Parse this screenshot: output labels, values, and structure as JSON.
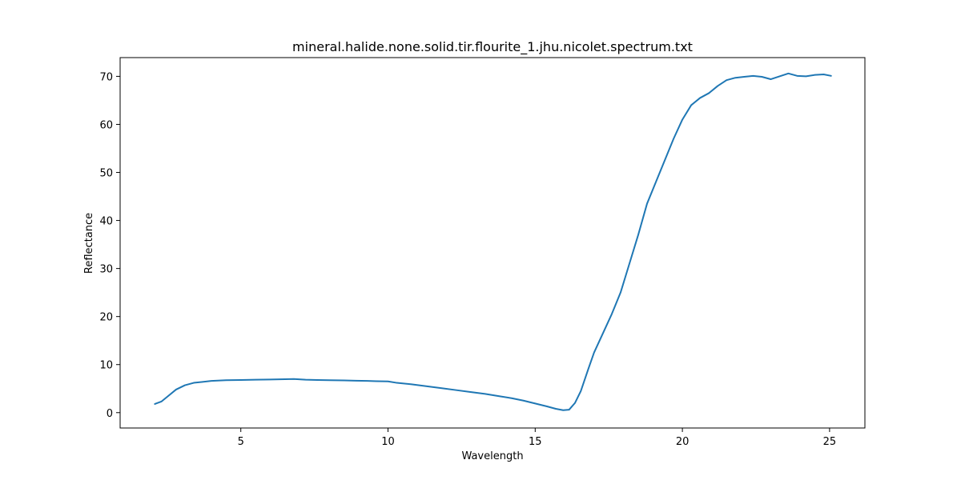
{
  "chart_data": {
    "type": "line",
    "title": "mineral.halide.none.solid.tir.flourite_1.jhu.nicolet.spectrum.txt",
    "xlabel": "Wavelength",
    "ylabel": "Reflectance",
    "xlim": [
      0.9,
      26.2
    ],
    "ylim": [
      -3.2,
      73.9
    ],
    "xticks": [
      5,
      10,
      15,
      20,
      25
    ],
    "yticks": [
      0,
      10,
      20,
      30,
      40,
      50,
      60,
      70
    ],
    "xtick_labels": [
      "5",
      "10",
      "15",
      "20",
      "25"
    ],
    "ytick_labels": [
      "0",
      "10",
      "20",
      "30",
      "40",
      "50",
      "60",
      "70"
    ],
    "grid": false,
    "series": [
      {
        "color": "#1f77b4",
        "x": [
          2.08,
          2.3,
          2.5,
          2.8,
          3.1,
          3.4,
          3.7,
          4.0,
          4.5,
          5.0,
          5.5,
          6.0,
          6.5,
          6.8,
          7.2,
          7.6,
          8.0,
          8.5,
          8.9,
          9.3,
          9.6,
          10.0,
          10.3,
          10.8,
          11.3,
          11.8,
          12.3,
          12.8,
          13.3,
          13.8,
          14.2,
          14.6,
          15.0,
          15.4,
          15.7,
          15.95,
          16.15,
          16.35,
          16.55,
          16.8,
          17.0,
          17.3,
          17.6,
          17.9,
          18.2,
          18.5,
          18.8,
          19.1,
          19.4,
          19.7,
          20.0,
          20.3,
          20.6,
          20.9,
          21.2,
          21.5,
          21.8,
          22.1,
          22.4,
          22.7,
          23.0,
          23.3,
          23.6,
          23.9,
          24.2,
          24.5,
          24.8,
          25.05
        ],
        "y": [
          1.8,
          2.3,
          3.3,
          4.8,
          5.7,
          6.2,
          6.4,
          6.6,
          6.75,
          6.8,
          6.85,
          6.9,
          6.95,
          7.0,
          6.85,
          6.8,
          6.75,
          6.7,
          6.65,
          6.6,
          6.55,
          6.5,
          6.2,
          5.9,
          5.5,
          5.1,
          4.7,
          4.3,
          3.9,
          3.4,
          3.0,
          2.5,
          1.9,
          1.3,
          0.8,
          0.5,
          0.6,
          2.0,
          4.5,
          9.0,
          12.5,
          16.5,
          20.5,
          25.0,
          31.0,
          37.0,
          43.5,
          48.0,
          52.5,
          57.0,
          61.0,
          64.0,
          65.5,
          66.5,
          68.0,
          69.2,
          69.7,
          69.9,
          70.1,
          69.9,
          69.4,
          70.0,
          70.6,
          70.1,
          70.0,
          70.3,
          70.4,
          70.1
        ]
      }
    ]
  }
}
